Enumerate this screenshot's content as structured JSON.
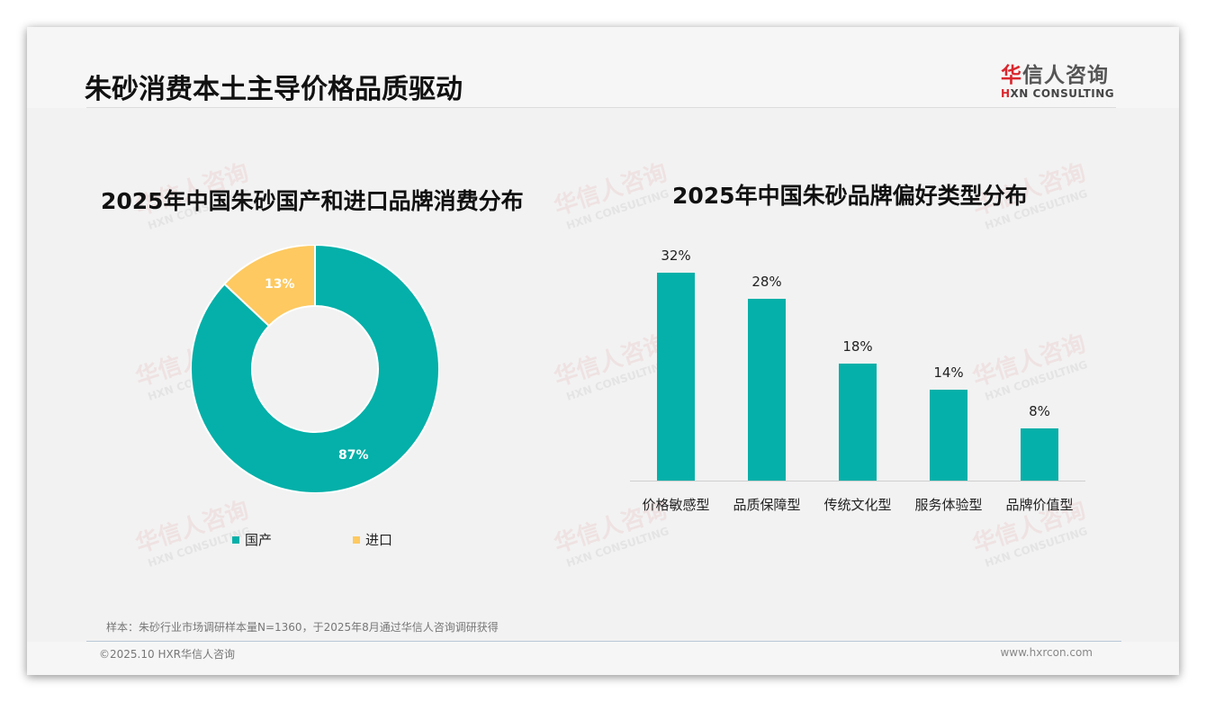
{
  "header": {
    "title": "朱砂消费本土主导价格品质驱动",
    "logo_cn_first": "华",
    "logo_cn_rest": "信人咨询",
    "logo_en_first": "H",
    "logo_en_rest": "XN CONSULTING"
  },
  "watermark": {
    "cn": "华信人咨询",
    "en": "HXN CONSULTING"
  },
  "left_chart": {
    "title": "2025年中国朱砂国产和进口品牌消费分布",
    "slices": [
      {
        "label": "国产",
        "value": 87,
        "value_text": "87%",
        "color": "#04b0a9"
      },
      {
        "label": "进口",
        "value": 13,
        "value_text": "13%",
        "color": "#fdc960"
      }
    ],
    "legend": [
      {
        "label": "国产",
        "color": "#04b0a9"
      },
      {
        "label": "进口",
        "color": "#fdc960"
      }
    ]
  },
  "right_chart": {
    "title": "2025年中国朱砂品牌偏好类型分布",
    "bars": [
      {
        "label": "价格敏感型",
        "value": 32,
        "value_text": "32%"
      },
      {
        "label": "品质保障型",
        "value": 28,
        "value_text": "28%"
      },
      {
        "label": "传统文化型",
        "value": 18,
        "value_text": "18%"
      },
      {
        "label": "服务体验型",
        "value": 14,
        "value_text": "14%"
      },
      {
        "label": "品牌价值型",
        "value": 8,
        "value_text": "8%"
      }
    ],
    "bar_color": "#04b0a9"
  },
  "chart_data": [
    {
      "type": "pie",
      "title": "2025年中国朱砂国产和进口品牌消费分布",
      "categories": [
        "国产",
        "进口"
      ],
      "values": [
        87,
        13
      ],
      "donut": true,
      "legend_position": "bottom",
      "colors": [
        "#04b0a9",
        "#fdc960"
      ]
    },
    {
      "type": "bar",
      "title": "2025年中国朱砂品牌偏好类型分布",
      "categories": [
        "价格敏感型",
        "品质保障型",
        "传统文化型",
        "服务体验型",
        "品牌价值型"
      ],
      "values": [
        32,
        28,
        18,
        14,
        8
      ],
      "value_labels": [
        "32%",
        "28%",
        "18%",
        "14%",
        "8%"
      ],
      "xlabel": "",
      "ylabel": "",
      "ylim": [
        0,
        35
      ],
      "grid": false
    }
  ],
  "footer": {
    "note": "样本：朱砂行业市场调研样本量N=1360，于2025年8月通过华信人咨询调研获得",
    "copyright": "©2025.10 HXR华信人咨询",
    "website": "www.hxrcon.com"
  }
}
